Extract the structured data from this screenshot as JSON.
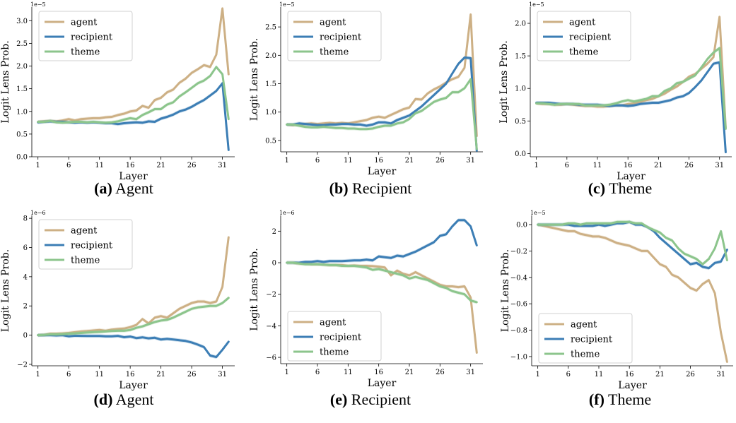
{
  "colors": {
    "agent": "#cdb085",
    "recipient": "#3c7eb5",
    "theme": "#8cc58c"
  },
  "captions": [
    {
      "letter": "(a)",
      "text": "Agent"
    },
    {
      "letter": "(b)",
      "text": "Recipient"
    },
    {
      "letter": "(c)",
      "text": "Theme"
    },
    {
      "letter": "(d)",
      "text": "Agent"
    },
    {
      "letter": "(e)",
      "text": "Recipient"
    },
    {
      "letter": "(f)",
      "text": "Theme"
    }
  ],
  "chart_data": [
    {
      "type": "line",
      "xlabel": "Layer",
      "ylabel": "Logit Lens Prob.",
      "scale_label": "1e−5",
      "x": [
        1,
        2,
        3,
        4,
        5,
        6,
        7,
        8,
        9,
        10,
        11,
        12,
        13,
        14,
        15,
        16,
        17,
        18,
        19,
        20,
        21,
        22,
        23,
        24,
        25,
        26,
        27,
        28,
        29,
        30,
        31,
        32
      ],
      "xticks": [
        1,
        6,
        11,
        16,
        21,
        26,
        31
      ],
      "yticks": [
        0.0,
        0.5,
        1.0,
        1.5,
        2.0,
        2.5,
        3.0
      ],
      "ylim": [
        0.0,
        3.3
      ],
      "ytick_labels": [
        "0.0",
        "0.5",
        "1.0",
        "1.5",
        "2.0",
        "2.5",
        "3.0"
      ],
      "legend_position": "upper-left",
      "series": [
        {
          "name": "agent",
          "values": [
            0.77,
            0.78,
            0.79,
            0.78,
            0.8,
            0.83,
            0.8,
            0.83,
            0.84,
            0.85,
            0.85,
            0.87,
            0.88,
            0.92,
            0.95,
            1.0,
            1.02,
            1.12,
            1.08,
            1.25,
            1.3,
            1.42,
            1.48,
            1.63,
            1.72,
            1.85,
            1.93,
            2.02,
            1.98,
            2.25,
            3.27,
            1.82
          ]
        },
        {
          "name": "recipient",
          "values": [
            0.76,
            0.77,
            0.78,
            0.77,
            0.77,
            0.76,
            0.75,
            0.76,
            0.75,
            0.76,
            0.75,
            0.74,
            0.74,
            0.72,
            0.74,
            0.75,
            0.76,
            0.75,
            0.78,
            0.77,
            0.84,
            0.88,
            0.93,
            1.0,
            1.04,
            1.1,
            1.18,
            1.25,
            1.35,
            1.45,
            1.62,
            0.15
          ]
        },
        {
          "name": "theme",
          "values": [
            0.77,
            0.77,
            0.79,
            0.76,
            0.75,
            0.76,
            0.77,
            0.77,
            0.76,
            0.77,
            0.76,
            0.75,
            0.76,
            0.78,
            0.82,
            0.85,
            0.83,
            0.92,
            0.98,
            1.05,
            1.05,
            1.15,
            1.2,
            1.33,
            1.42,
            1.52,
            1.62,
            1.68,
            1.78,
            1.98,
            1.82,
            0.83
          ]
        }
      ]
    },
    {
      "type": "line",
      "xlabel": "Layer",
      "ylabel": "Logit Lens Prob.",
      "scale_label": "1e−5",
      "x": [
        1,
        2,
        3,
        4,
        5,
        6,
        7,
        8,
        9,
        10,
        11,
        12,
        13,
        14,
        15,
        16,
        17,
        18,
        19,
        20,
        21,
        22,
        23,
        24,
        25,
        26,
        27,
        28,
        29,
        30,
        31,
        32
      ],
      "xticks": [
        1,
        6,
        11,
        16,
        21,
        26,
        31
      ],
      "yticks": [
        0.5,
        1.0,
        1.5,
        2.0,
        2.5
      ],
      "ylim": [
        0.3,
        2.85
      ],
      "ytick_labels": [
        "0.5",
        "1.0",
        "1.5",
        "2.0",
        "2.5"
      ],
      "legend_position": "upper-left",
      "series": [
        {
          "name": "agent",
          "values": [
            0.78,
            0.77,
            0.78,
            0.79,
            0.8,
            0.79,
            0.8,
            0.81,
            0.8,
            0.81,
            0.8,
            0.82,
            0.84,
            0.86,
            0.9,
            0.92,
            0.9,
            0.95,
            1.0,
            1.05,
            1.08,
            1.23,
            1.22,
            1.33,
            1.4,
            1.45,
            1.52,
            1.58,
            1.62,
            1.78,
            2.72,
            0.58
          ]
        },
        {
          "name": "recipient",
          "values": [
            0.78,
            0.78,
            0.8,
            0.79,
            0.78,
            0.77,
            0.77,
            0.78,
            0.78,
            0.79,
            0.79,
            0.78,
            0.78,
            0.76,
            0.78,
            0.82,
            0.82,
            0.8,
            0.86,
            0.9,
            0.94,
            1.02,
            1.1,
            1.2,
            1.3,
            1.4,
            1.5,
            1.68,
            1.85,
            1.96,
            1.95,
            0.32
          ]
        },
        {
          "name": "theme",
          "values": [
            0.78,
            0.78,
            0.76,
            0.74,
            0.73,
            0.73,
            0.74,
            0.73,
            0.72,
            0.72,
            0.71,
            0.71,
            0.7,
            0.7,
            0.71,
            0.74,
            0.76,
            0.76,
            0.8,
            0.82,
            0.88,
            0.98,
            1.02,
            1.1,
            1.18,
            1.22,
            1.25,
            1.35,
            1.35,
            1.42,
            1.58,
            0.35
          ]
        }
      ]
    },
    {
      "type": "line",
      "xlabel": "Layer",
      "ylabel": "Logit Lens Prob.",
      "scale_label": "1e−5",
      "x": [
        1,
        2,
        3,
        4,
        5,
        6,
        7,
        8,
        9,
        10,
        11,
        12,
        13,
        14,
        15,
        16,
        17,
        18,
        19,
        20,
        21,
        22,
        23,
        24,
        25,
        26,
        27,
        28,
        29,
        30,
        31,
        32
      ],
      "xticks": [
        1,
        6,
        11,
        16,
        21,
        26,
        31
      ],
      "yticks": [
        0.0,
        0.5,
        1.0,
        1.5,
        2.0
      ],
      "ylim": [
        -0.05,
        2.25
      ],
      "ytick_labels": [
        "0.0",
        "0.5",
        "1.0",
        "1.5",
        "2.0"
      ],
      "legend_position": "upper-left",
      "series": [
        {
          "name": "agent",
          "values": [
            0.77,
            0.76,
            0.76,
            0.75,
            0.75,
            0.76,
            0.75,
            0.74,
            0.73,
            0.73,
            0.72,
            0.72,
            0.73,
            0.74,
            0.74,
            0.76,
            0.77,
            0.79,
            0.82,
            0.84,
            0.88,
            0.92,
            0.98,
            1.03,
            1.1,
            1.18,
            1.22,
            1.3,
            1.38,
            1.48,
            2.1,
            0.4
          ]
        },
        {
          "name": "recipient",
          "values": [
            0.78,
            0.78,
            0.78,
            0.77,
            0.76,
            0.76,
            0.76,
            0.75,
            0.75,
            0.75,
            0.75,
            0.74,
            0.73,
            0.74,
            0.74,
            0.73,
            0.74,
            0.76,
            0.77,
            0.78,
            0.78,
            0.8,
            0.82,
            0.86,
            0.88,
            0.93,
            1.02,
            1.12,
            1.25,
            1.38,
            1.4,
            0.02
          ]
        },
        {
          "name": "theme",
          "values": [
            0.77,
            0.77,
            0.76,
            0.75,
            0.76,
            0.76,
            0.76,
            0.76,
            0.74,
            0.74,
            0.74,
            0.74,
            0.75,
            0.77,
            0.8,
            0.82,
            0.8,
            0.82,
            0.84,
            0.88,
            0.88,
            0.96,
            1.0,
            1.08,
            1.1,
            1.15,
            1.2,
            1.32,
            1.45,
            1.55,
            1.62,
            0.38
          ]
        }
      ]
    },
    {
      "type": "line",
      "xlabel": "Layer",
      "ylabel": "Logit Lens Prob.",
      "scale_label": "1e−6",
      "x": [
        1,
        2,
        3,
        4,
        5,
        6,
        7,
        8,
        9,
        10,
        11,
        12,
        13,
        14,
        15,
        16,
        17,
        18,
        19,
        20,
        21,
        22,
        23,
        24,
        25,
        26,
        27,
        28,
        29,
        30,
        31,
        32
      ],
      "xticks": [
        1,
        6,
        11,
        16,
        21,
        26,
        31
      ],
      "yticks": [
        -2,
        0,
        2,
        4,
        6,
        8
      ],
      "ylim": [
        -2.1,
        8.2
      ],
      "ytick_labels": [
        "−2",
        "0",
        "2",
        "4",
        "6",
        "8"
      ],
      "legend_position": "upper-left",
      "series": [
        {
          "name": "agent",
          "values": [
            0.0,
            0.02,
            0.1,
            0.1,
            0.12,
            0.15,
            0.2,
            0.25,
            0.28,
            0.32,
            0.35,
            0.3,
            0.38,
            0.42,
            0.45,
            0.55,
            0.7,
            1.1,
            0.8,
            1.2,
            1.3,
            1.2,
            1.5,
            1.8,
            2.0,
            2.2,
            2.3,
            2.3,
            2.2,
            2.3,
            3.3,
            6.7
          ]
        },
        {
          "name": "recipient",
          "values": [
            0.0,
            0.0,
            0.0,
            -0.02,
            0.0,
            -0.08,
            -0.04,
            -0.05,
            -0.06,
            -0.06,
            -0.06,
            -0.08,
            -0.08,
            -0.05,
            -0.14,
            -0.1,
            -0.2,
            -0.15,
            -0.22,
            -0.18,
            -0.3,
            -0.26,
            -0.3,
            -0.35,
            -0.4,
            -0.5,
            -0.65,
            -0.82,
            -1.4,
            -1.5,
            -1.0,
            -0.45
          ]
        },
        {
          "name": "theme",
          "values": [
            0.0,
            0.02,
            0.05,
            0.05,
            0.07,
            0.1,
            0.12,
            0.15,
            0.18,
            0.2,
            0.22,
            0.25,
            0.28,
            0.3,
            0.3,
            0.35,
            0.5,
            0.6,
            0.75,
            0.9,
            1.0,
            1.05,
            1.2,
            1.4,
            1.6,
            1.8,
            1.9,
            1.95,
            2.0,
            2.0,
            2.2,
            2.55
          ]
        }
      ]
    },
    {
      "type": "line",
      "xlabel": "Layer",
      "ylabel": "Logit Lens Prob.",
      "scale_label": "1e−6",
      "x": [
        1,
        2,
        3,
        4,
        5,
        6,
        7,
        8,
        9,
        10,
        11,
        12,
        13,
        14,
        15,
        16,
        17,
        18,
        19,
        20,
        21,
        22,
        23,
        24,
        25,
        26,
        27,
        28,
        29,
        30,
        31,
        32
      ],
      "xticks": [
        1,
        6,
        11,
        16,
        21,
        26,
        31
      ],
      "yticks": [
        -6,
        -4,
        -2,
        0,
        2
      ],
      "ylim": [
        -6.4,
        3.0
      ],
      "ytick_labels": [
        "−6",
        "−4",
        "−2",
        "0",
        "2"
      ],
      "legend_position": "lower-left",
      "series": [
        {
          "name": "agent",
          "values": [
            0.0,
            0.0,
            -0.05,
            -0.05,
            -0.1,
            -0.1,
            -0.12,
            -0.15,
            -0.15,
            -0.15,
            -0.2,
            -0.18,
            -0.2,
            -0.2,
            -0.22,
            -0.25,
            -0.3,
            -0.8,
            -0.5,
            -0.7,
            -0.8,
            -0.6,
            -0.8,
            -1.0,
            -1.2,
            -1.4,
            -1.5,
            -1.5,
            -1.55,
            -1.5,
            -2.2,
            -5.7
          ]
        },
        {
          "name": "recipient",
          "values": [
            0.0,
            0.0,
            0.0,
            0.05,
            0.05,
            0.1,
            0.05,
            0.1,
            0.1,
            0.1,
            0.12,
            0.15,
            0.15,
            0.2,
            0.15,
            0.4,
            0.35,
            0.3,
            0.45,
            0.4,
            0.55,
            0.7,
            0.9,
            1.1,
            1.3,
            1.7,
            1.8,
            2.3,
            2.7,
            2.7,
            2.3,
            1.1
          ]
        },
        {
          "name": "theme",
          "values": [
            0.0,
            0.0,
            -0.05,
            -0.1,
            -0.1,
            -0.1,
            -0.12,
            -0.15,
            -0.15,
            -0.2,
            -0.2,
            -0.2,
            -0.25,
            -0.3,
            -0.45,
            -0.4,
            -0.5,
            -0.6,
            -0.7,
            -0.8,
            -1.0,
            -0.9,
            -1.0,
            -1.1,
            -1.3,
            -1.5,
            -1.6,
            -1.8,
            -1.9,
            -2.0,
            -2.4,
            -2.5
          ]
        }
      ]
    },
    {
      "type": "line",
      "xlabel": "Layer",
      "ylabel": "Logit Lens Prob.",
      "scale_label": "1e−5",
      "x": [
        1,
        2,
        3,
        4,
        5,
        6,
        7,
        8,
        9,
        10,
        11,
        12,
        13,
        14,
        15,
        16,
        17,
        18,
        19,
        20,
        21,
        22,
        23,
        24,
        25,
        26,
        27,
        28,
        29,
        30,
        31,
        32
      ],
      "xticks": [
        1,
        6,
        11,
        16,
        21,
        26,
        31
      ],
      "yticks": [
        -1.0,
        -0.8,
        -0.6,
        -0.4,
        -0.2,
        0.0
      ],
      "ylim": [
        -1.07,
        0.07
      ],
      "ytick_labels": [
        "−1.0",
        "−0.8",
        "−0.6",
        "−0.4",
        "−0.2",
        "0.0"
      ],
      "legend_position": "lower-left",
      "series": [
        {
          "name": "agent",
          "values": [
            0.0,
            -0.01,
            -0.02,
            -0.03,
            -0.04,
            -0.05,
            -0.05,
            -0.07,
            -0.08,
            -0.09,
            -0.09,
            -0.1,
            -0.12,
            -0.14,
            -0.15,
            -0.16,
            -0.18,
            -0.2,
            -0.2,
            -0.25,
            -0.3,
            -0.32,
            -0.38,
            -0.4,
            -0.44,
            -0.48,
            -0.5,
            -0.45,
            -0.42,
            -0.52,
            -0.82,
            -1.04
          ]
        },
        {
          "name": "recipient",
          "values": [
            0.0,
            0.0,
            0.0,
            0.0,
            0.0,
            0.0,
            -0.01,
            -0.01,
            -0.01,
            -0.01,
            0.0,
            -0.01,
            0.0,
            0.01,
            0.01,
            0.02,
            0.0,
            0.0,
            -0.02,
            -0.05,
            -0.1,
            -0.14,
            -0.18,
            -0.22,
            -0.26,
            -0.3,
            -0.29,
            -0.32,
            -0.33,
            -0.29,
            -0.28,
            -0.19
          ]
        },
        {
          "name": "theme",
          "values": [
            0.0,
            0.0,
            0.0,
            0.0,
            0.0,
            0.01,
            0.01,
            0.0,
            0.01,
            0.01,
            0.01,
            0.01,
            0.01,
            0.02,
            0.02,
            0.02,
            0.01,
            0.01,
            -0.02,
            -0.04,
            -0.06,
            -0.1,
            -0.12,
            -0.18,
            -0.22,
            -0.24,
            -0.26,
            -0.3,
            -0.26,
            -0.18,
            -0.05,
            -0.27
          ]
        }
      ]
    }
  ]
}
